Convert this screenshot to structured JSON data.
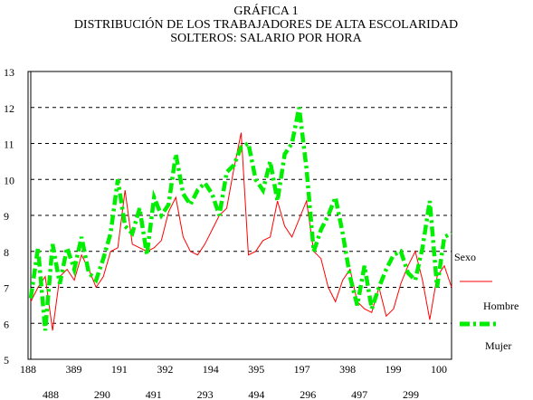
{
  "chart_data": {
    "type": "line",
    "title_lines": [
      "GRÁFICA 1",
      "DISTRIBUCIÓN DE LOS TRABAJADORES DE ALTA ESCOLARIDAD",
      "SOLTEROS: SALARIO POR HORA"
    ],
    "ylim": [
      5,
      13
    ],
    "y_ticks": [
      "5",
      "6",
      "7",
      "8",
      "9",
      "10",
      "11",
      "12",
      "13"
    ],
    "grid": "horizontal dashed",
    "x_ticks_upper": [
      "188",
      "389",
      "191",
      "392",
      "194",
      "395",
      "197",
      "398",
      "199",
      "100"
    ],
    "x_ticks_lower": [
      "488",
      "290",
      "491",
      "293",
      "494",
      "296",
      "497",
      "299"
    ],
    "legend": {
      "title": "Sexo",
      "placement": "right",
      "entries": [
        "Hombre",
        "Mujer"
      ]
    },
    "x_count": 59,
    "series": [
      {
        "name": "Hombre",
        "color": "#ff0000",
        "style": "solid-thin",
        "values": [
          6.6,
          7.0,
          7.3,
          5.8,
          7.3,
          7.5,
          7.2,
          7.9,
          7.5,
          7.0,
          7.3,
          8.0,
          8.1,
          9.7,
          8.2,
          8.1,
          8.0,
          8.1,
          8.3,
          9.1,
          9.5,
          8.4,
          8.0,
          7.9,
          8.2,
          8.6,
          9.0,
          9.2,
          10.3,
          11.3,
          7.9,
          8.0,
          8.3,
          8.4,
          9.4,
          8.7,
          8.4,
          8.9,
          9.4,
          8.0,
          7.8,
          7.0,
          6.6,
          7.2,
          7.5,
          6.6,
          6.4,
          6.3,
          7.0,
          6.2,
          6.4,
          7.1,
          7.6,
          8.0,
          7.2,
          6.1,
          7.3,
          7.6,
          7.0
        ]
      },
      {
        "name": "Mujer",
        "color": "#00ee00",
        "style": "thick-dash-dot",
        "values": [
          6.7,
          8.1,
          5.8,
          8.2,
          7.1,
          8.1,
          7.5,
          8.4,
          7.4,
          7.2,
          7.8,
          8.5,
          10.0,
          8.7,
          8.5,
          9.2,
          7.9,
          9.5,
          9.0,
          9.3,
          10.7,
          9.6,
          9.3,
          9.7,
          9.9,
          9.6,
          9.0,
          10.2,
          10.4,
          10.9,
          11.0,
          10.0,
          9.7,
          10.5,
          9.4,
          10.7,
          11.0,
          12.0,
          10.3,
          8.0,
          8.6,
          9.0,
          9.5,
          8.5,
          7.3,
          6.5,
          7.6,
          6.4,
          7.0,
          7.5,
          7.9,
          8.0,
          7.4,
          7.2,
          8.1,
          9.4,
          7.0,
          8.4,
          8.5
        ]
      }
    ]
  }
}
